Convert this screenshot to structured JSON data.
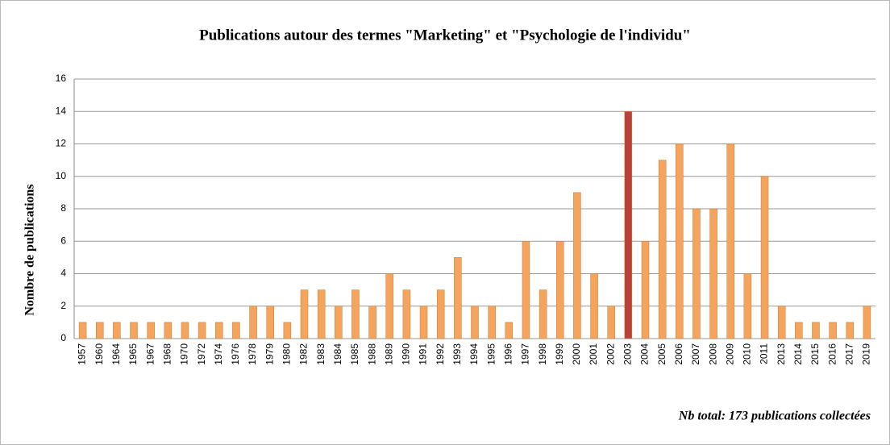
{
  "chart_data": {
    "type": "bar",
    "title": "Publications autour des termes \"Marketing\" et \"Psychologie de l'individu\"",
    "y_label": "Nombre de publications",
    "annotation": "Nb total: 173 publications collectées",
    "categories": [
      "1957",
      "1960",
      "1964",
      "1965",
      "1967",
      "1968",
      "1970",
      "1972",
      "1974",
      "1976",
      "1978",
      "1979",
      "1980",
      "1982",
      "1983",
      "1984",
      "1985",
      "1988",
      "1989",
      "1990",
      "1991",
      "1992",
      "1993",
      "1994",
      "1995",
      "1996",
      "1997",
      "1998",
      "1999",
      "2000",
      "2001",
      "2002",
      "2003",
      "2004",
      "2005",
      "2006",
      "2007",
      "2008",
      "2009",
      "2010",
      "2011",
      "2013",
      "2014",
      "2015",
      "2016",
      "2017",
      "2019"
    ],
    "values": [
      1,
      1,
      1,
      1,
      1,
      1,
      1,
      1,
      1,
      1,
      2,
      2,
      1,
      3,
      3,
      2,
      3,
      2,
      4,
      3,
      2,
      3,
      5,
      2,
      2,
      1,
      6,
      3,
      6,
      9,
      4,
      2,
      14,
      6,
      11,
      12,
      8,
      8,
      12,
      4,
      10,
      2,
      1,
      1,
      1,
      1,
      2
    ],
    "colors": [
      "#f4a45c",
      "#f4a45c",
      "#f4a45c",
      "#f4a45c",
      "#f4a45c",
      "#f4a45c",
      "#f4a45c",
      "#f4a45c",
      "#f4a45c",
      "#f4a45c",
      "#f4a45c",
      "#f4a45c",
      "#f4a45c",
      "#f4a45c",
      "#f4a45c",
      "#f4a45c",
      "#f4a45c",
      "#f4a45c",
      "#f4a45c",
      "#f4a45c",
      "#f4a45c",
      "#f4a45c",
      "#f4a45c",
      "#f4a45c",
      "#f4a45c",
      "#f4a45c",
      "#f4a45c",
      "#f4a45c",
      "#f4a45c",
      "#f4a45c",
      "#f4a45c",
      "#f4a45c",
      "#b8423a",
      "#f4a45c",
      "#f4a45c",
      "#f4a45c",
      "#f4a45c",
      "#f4a45c",
      "#f4a45c",
      "#f4a45c",
      "#f4a45c",
      "#f4a45c",
      "#f4a45c",
      "#f4a45c",
      "#f4a45c",
      "#f4a45c",
      "#f4a45c"
    ],
    "ylim": [
      0,
      16
    ],
    "yticks": [
      0,
      2,
      4,
      6,
      8,
      10,
      12,
      14,
      16
    ],
    "grid": true
  }
}
